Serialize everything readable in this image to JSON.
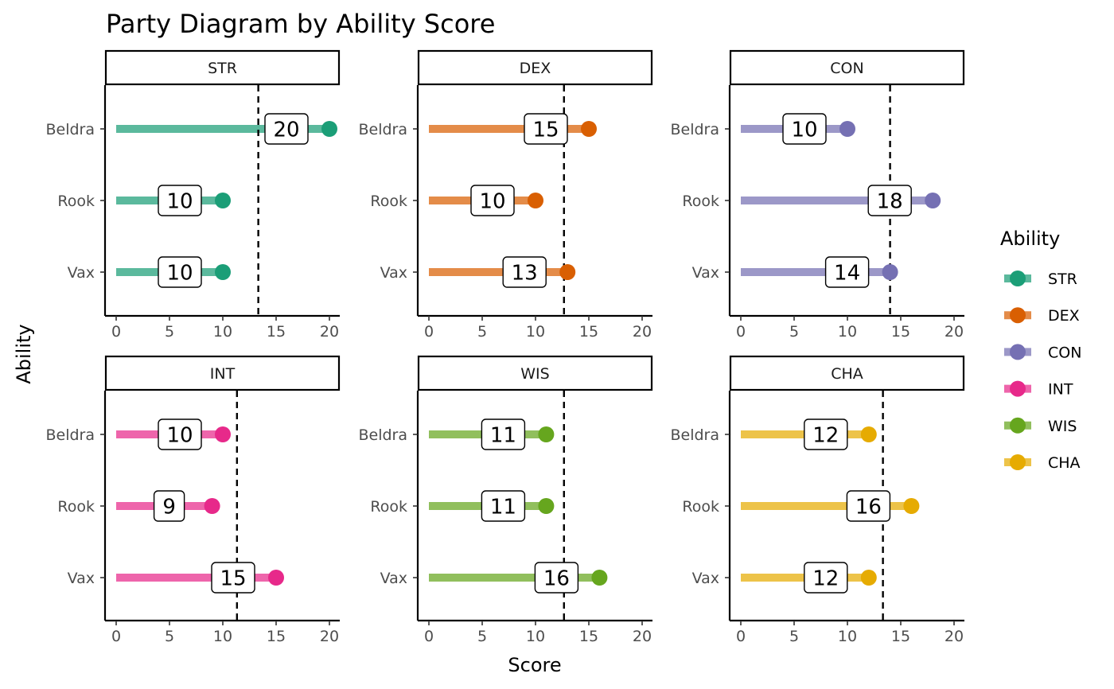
{
  "chart_data": {
    "type": "lollipop",
    "title": "Party Diagram by Ability Score",
    "xlabel": "Score",
    "ylabel": "Ability",
    "xlim": [
      0,
      20
    ],
    "x_ticks": [
      0,
      5,
      10,
      15,
      20
    ],
    "characters": [
      "Beldra",
      "Rook",
      "Vax"
    ],
    "legend": {
      "title": "Ability",
      "position": "right"
    },
    "grid": false,
    "facets": [
      {
        "name": "STR",
        "color": "#1b9e77",
        "values": [
          20,
          10,
          10
        ],
        "reference_line": 13.33
      },
      {
        "name": "DEX",
        "color": "#d95f02",
        "values": [
          15,
          10,
          13
        ],
        "reference_line": 12.67
      },
      {
        "name": "CON",
        "color": "#7570b3",
        "values": [
          10,
          18,
          14
        ],
        "reference_line": 14.0
      },
      {
        "name": "INT",
        "color": "#e7298a",
        "values": [
          10,
          9,
          15
        ],
        "reference_line": 11.33
      },
      {
        "name": "WIS",
        "color": "#66a61e",
        "values": [
          11,
          11,
          16
        ],
        "reference_line": 12.67
      },
      {
        "name": "CHA",
        "color": "#e6ab02",
        "values": [
          12,
          16,
          12
        ],
        "reference_line": 13.33
      }
    ]
  }
}
